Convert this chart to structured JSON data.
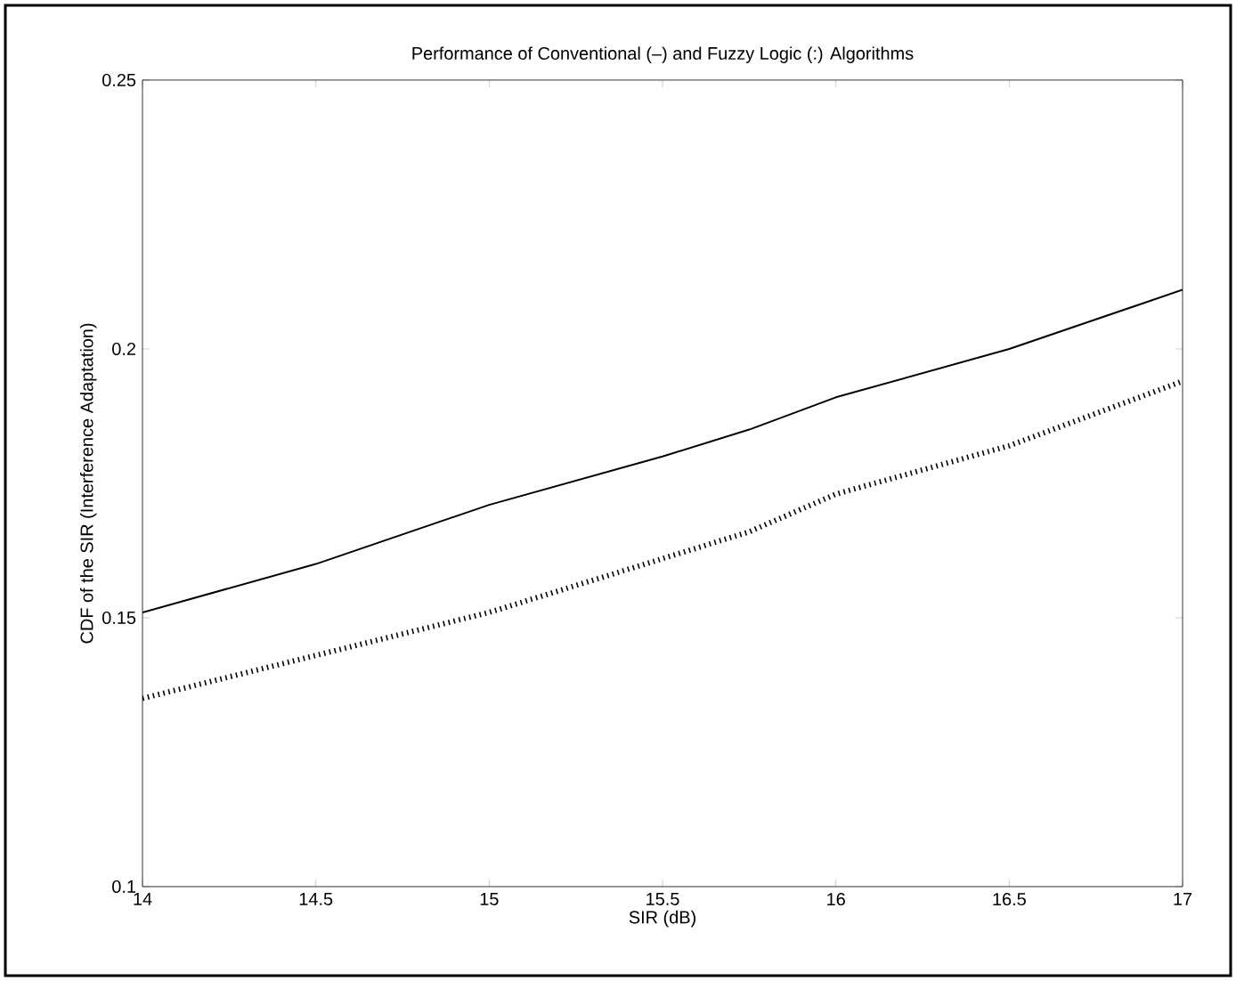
{
  "chart_data": {
    "type": "line",
    "title": "Performance of Conventional (–) and Fuzzy Logic (:) Algorithms",
    "xlabel": "SIR (dB)",
    "ylabel": "CDF of the SIR (Interference Adaptation)",
    "x": [
      14,
      14.5,
      15,
      15.5,
      15.75,
      16,
      16.5,
      17
    ],
    "series": [
      {
        "color": "#000000",
        "line_style": "solid",
        "values": [
          0.151,
          0.16,
          0.171,
          0.18,
          0.185,
          0.191,
          0.2,
          0.211
        ]
      },
      {
        "color": "#000000",
        "line_style": "dotted",
        "values": [
          0.135,
          0.143,
          0.151,
          0.161,
          0.166,
          0.173,
          0.182,
          0.194
        ]
      }
    ],
    "xlim": [
      14,
      17
    ],
    "ylim": [
      0.1,
      0.25
    ],
    "xticks": [
      14,
      14.5,
      15,
      15.5,
      16,
      16.5,
      17
    ],
    "yticks": [
      0.1,
      0.15,
      0.2,
      0.25
    ]
  }
}
